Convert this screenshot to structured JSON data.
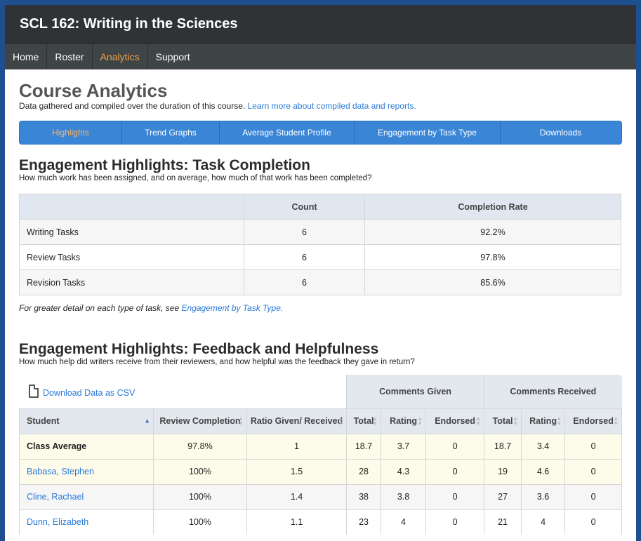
{
  "header": {
    "title": "SCL 162: Writing in the Sciences"
  },
  "nav": {
    "items": [
      "Home",
      "Roster",
      "Analytics",
      "Support"
    ],
    "active": "Analytics"
  },
  "page": {
    "title": "Course Analytics",
    "subtitle": "Data gathered and compiled over the duration of this course.",
    "subtitle_link": "Learn more about compiled data and reports."
  },
  "tabs": [
    "Highlights",
    "Trend Graphs",
    "Average Student Profile",
    "Engagement by Task Type",
    "Downloads"
  ],
  "task_completion": {
    "title": "Engagement Highlights: Task Completion",
    "subtitle": "How much work has been assigned, and on average, how much of that work has been completed?",
    "headers": [
      "",
      "Count",
      "Completion Rate"
    ],
    "rows": [
      [
        "Writing Tasks",
        "6",
        "92.2%"
      ],
      [
        "Review Tasks",
        "6",
        "97.8%"
      ],
      [
        "Revision Tasks",
        "6",
        "85.6%"
      ]
    ],
    "note": "For greater detail on each type of task, see",
    "note_link": "Engagement by Task Type."
  },
  "feedback": {
    "title": "Engagement Highlights: Feedback and Helpfulness",
    "subtitle": "How much help did writers receive from their reviewers, and how helpful was the feedback they gave in return?",
    "download_label": "Download Data as CSV",
    "groups": [
      "Comments Given",
      "Comments Received"
    ],
    "headers": [
      "Student",
      "Review Completion",
      "Ratio Given/ Received",
      "Total",
      "Rating",
      "Endorsed",
      "Total",
      "Rating",
      "Endorsed"
    ],
    "rows": [
      [
        "Class Average",
        "97.8%",
        "1",
        "18.7",
        "3.7",
        "0",
        "18.7",
        "3.4",
        "0"
      ],
      [
        "Babasa, Stephen",
        "100%",
        "1.5",
        "28",
        "4.3",
        "0",
        "19",
        "4.6",
        "0"
      ],
      [
        "Cline, Rachael",
        "100%",
        "1.4",
        "38",
        "3.8",
        "0",
        "27",
        "3.6",
        "0"
      ],
      [
        "Dunn, Elizabeth",
        "100%",
        "1.1",
        "23",
        "4",
        "0",
        "21",
        "4",
        "0"
      ]
    ]
  }
}
